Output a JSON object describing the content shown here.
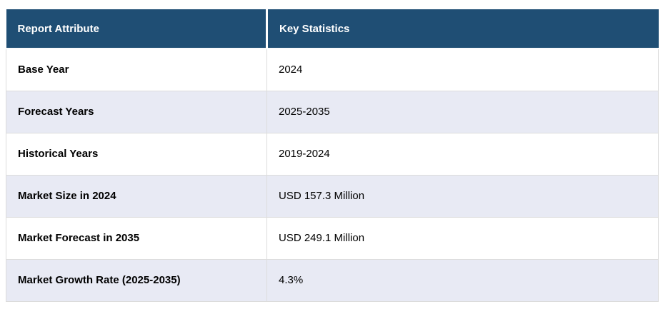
{
  "chart_data": {
    "type": "table",
    "columns": [
      "Report Attribute",
      "Key Statistics"
    ],
    "rows": [
      [
        "Base Year",
        "2024"
      ],
      [
        "Forecast Years",
        "2025-2035"
      ],
      [
        "Historical Years",
        "2019-2024"
      ],
      [
        "Market Size in 2024",
        "USD 157.3 Million"
      ],
      [
        "Market Forecast in 2035",
        "USD 249.1 Million"
      ],
      [
        "Market Growth Rate (2025-2035)",
        "4.3%"
      ]
    ]
  },
  "colors": {
    "header_background": "#1F4E74",
    "header_text": "#FFFFFF",
    "row_background": "#FFFFFF",
    "row_alt_background": "#E8EAF4",
    "border": "#DCDCDC",
    "body_text": "#000000",
    "page_background": "#FFFFFF"
  }
}
